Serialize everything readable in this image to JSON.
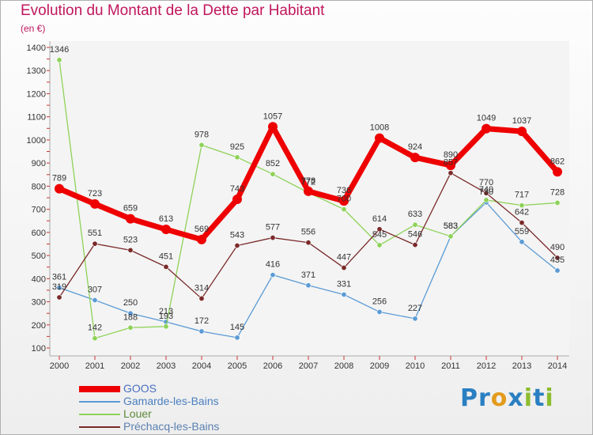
{
  "header": {
    "title": "Evolution du Montant de la Dette par Habitant",
    "unit": "(en €)"
  },
  "brand": {
    "letters": [
      "P",
      "r",
      "o",
      "x",
      "i",
      "t",
      "i"
    ],
    "colors": [
      "#2a7fc1",
      "#2a7fc1",
      "#e39b1d",
      "#2a7fc1",
      "#8cbd2e",
      "#2a7fc1",
      "#8cbd2e"
    ]
  },
  "chart_data": {
    "type": "line",
    "title": "Evolution du Montant de la Dette par Habitant",
    "ylabel": "(en €)",
    "xlabel": "",
    "x": [
      "2000",
      "2001",
      "2002",
      "2003",
      "2004",
      "2005",
      "2006",
      "2007",
      "2008",
      "2009",
      "2010",
      "2011",
      "2012",
      "2013",
      "2014"
    ],
    "ylim": [
      100,
      1400
    ],
    "yticks": [
      "100",
      "200",
      "300",
      "400",
      "500",
      "600",
      "700",
      "800",
      "900",
      "1000",
      "1100",
      "1200",
      "1300",
      "1400"
    ],
    "grid": false,
    "legend_position": "bottom-left",
    "series": [
      {
        "name": "GOOS",
        "color": "#ee0000",
        "thick": true,
        "values": [
          789,
          723,
          659,
          613,
          569,
          743,
          1057,
          778,
          736,
          1008,
          924,
          890,
          1049,
          1037,
          862
        ],
        "labels": [
          "789",
          "723",
          "659",
          "613",
          "569",
          "743",
          "1057",
          "778",
          "736",
          "1008",
          "924",
          "890",
          "1049",
          "1037",
          "862"
        ]
      },
      {
        "name": "Gamarde-les-Bains",
        "color": "#5b9bd5",
        "thick": false,
        "values": [
          361,
          307,
          250,
          213,
          172,
          145,
          416,
          371,
          331,
          256,
          227,
          583,
          730,
          559,
          435
        ],
        "labels": [
          "361",
          "307",
          "250",
          "213",
          "172",
          "145",
          "416",
          "371",
          "331",
          "256",
          "227",
          "583",
          "730",
          "559",
          "435"
        ]
      },
      {
        "name": "Louer",
        "color": "#8ed258",
        "thick": false,
        "values": [
          1346,
          142,
          188,
          193,
          978,
          925,
          852,
          772,
          700,
          545,
          633,
          583,
          740,
          717,
          728
        ],
        "labels": [
          "1346",
          "142",
          "188",
          "193",
          "978",
          "925",
          "852",
          "772",
          "700",
          "545",
          "633",
          "583",
          "740",
          "717",
          "728"
        ]
      },
      {
        "name": "Préchacq-les-Bains",
        "color": "#7a2a2a",
        "thick": false,
        "values": [
          319,
          551,
          523,
          451,
          314,
          543,
          577,
          556,
          447,
          614,
          546,
          857,
          770,
          642,
          490
        ],
        "labels": [
          "319",
          "551",
          "523",
          "451",
          "314",
          "543",
          "577",
          "556",
          "447",
          "614",
          "546",
          "857",
          "770",
          "642",
          "490"
        ]
      }
    ]
  }
}
